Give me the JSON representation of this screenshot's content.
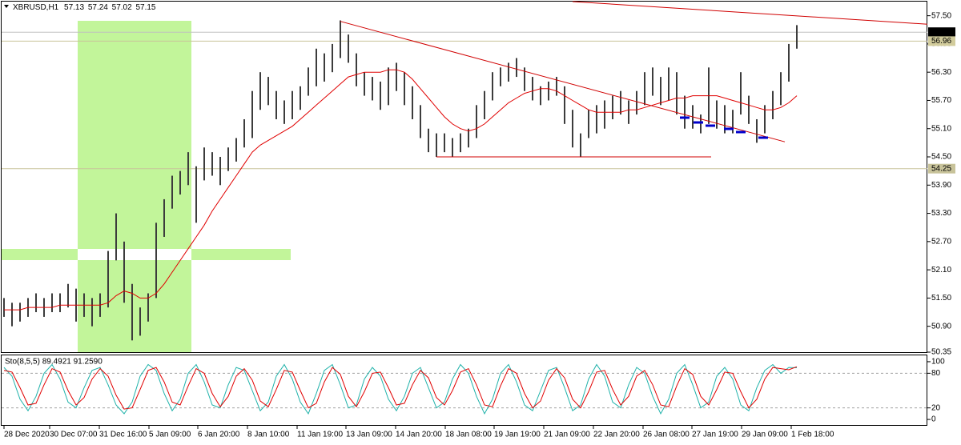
{
  "chart_data": [
    {
      "type": "price",
      "title": "XBRUSD,H1",
      "header_values": [
        57.13,
        57.24,
        57.02,
        57.15
      ],
      "bar_color": "#3c3c3c",
      "high": [
        51.5,
        51.4,
        51.4,
        51.5,
        51.6,
        51.5,
        51.6,
        51.6,
        51.8,
        51.7,
        51.6,
        51.5,
        51.6,
        52.5,
        53.3,
        52.7,
        51.8,
        51.3,
        51.6,
        53.1,
        53.6,
        54.1,
        54.2,
        54.6,
        54.3,
        54.7,
        54.6,
        54.5,
        54.7,
        54.9,
        55.3,
        55.9,
        56.3,
        56.2,
        55.9,
        55.7,
        55.9,
        56.0,
        56.4,
        56.8,
        56.7,
        56.9,
        57.4,
        57.1,
        56.7,
        56.3,
        56.2,
        56.1,
        56.4,
        56.5,
        56.3,
        56.0,
        55.6,
        55.1,
        55.0,
        55.0,
        54.9,
        55.0,
        55.1,
        55.6,
        55.9,
        56.3,
        56.4,
        56.5,
        56.6,
        56.4,
        56.2,
        56.0,
        56.1,
        56.2,
        56.0,
        55.5,
        55.0,
        55.5,
        55.6,
        55.7,
        55.8,
        55.9,
        55.7,
        55.9,
        56.3,
        56.4,
        56.2,
        56.4,
        56.3,
        55.8,
        55.6,
        55.4,
        56.4,
        55.7,
        55.6,
        55.5,
        56.3,
        55.8,
        55.3,
        55.6,
        55.9,
        56.3,
        56.9,
        57.3
      ],
      "low": [
        51.1,
        50.9,
        51.0,
        51.1,
        51.2,
        51.1,
        51.2,
        51.2,
        51.3,
        51.0,
        51.1,
        50.9,
        51.1,
        51.3,
        52.3,
        51.4,
        50.6,
        50.7,
        51.0,
        51.5,
        52.8,
        53.4,
        53.7,
        53.9,
        53.1,
        54.0,
        54.1,
        53.9,
        54.2,
        54.4,
        54.7,
        54.9,
        55.5,
        55.6,
        55.3,
        55.2,
        55.3,
        55.5,
        55.8,
        56.0,
        56.1,
        56.3,
        56.6,
        56.5,
        56.0,
        55.8,
        55.7,
        55.5,
        55.6,
        55.9,
        55.6,
        55.3,
        54.9,
        54.6,
        54.5,
        54.6,
        54.5,
        54.6,
        54.7,
        54.9,
        55.3,
        55.7,
        56.0,
        56.1,
        56.2,
        55.9,
        55.7,
        55.6,
        55.7,
        55.8,
        55.2,
        54.7,
        54.5,
        54.9,
        55.0,
        55.1,
        55.3,
        55.4,
        55.2,
        55.4,
        55.6,
        55.8,
        55.6,
        55.7,
        55.4,
        55.1,
        55.1,
        55.0,
        55.2,
        55.1,
        55.0,
        55.0,
        55.4,
        55.2,
        54.8,
        55.0,
        55.3,
        55.6,
        56.1,
        56.8
      ],
      "ma": {
        "color": "#e00000",
        "values": [
          51.25,
          51.25,
          51.25,
          51.3,
          51.3,
          51.3,
          51.3,
          51.35,
          51.35,
          51.35,
          51.35,
          51.35,
          51.35,
          51.4,
          51.55,
          51.65,
          51.6,
          51.5,
          51.5,
          51.6,
          51.8,
          52.05,
          52.3,
          52.55,
          52.8,
          53.05,
          53.35,
          53.6,
          53.85,
          54.1,
          54.35,
          54.6,
          54.75,
          54.85,
          54.95,
          55.05,
          55.15,
          55.3,
          55.45,
          55.6,
          55.75,
          55.9,
          56.05,
          56.2,
          56.25,
          56.3,
          56.3,
          56.3,
          56.35,
          56.35,
          56.3,
          56.15,
          55.95,
          55.75,
          55.55,
          55.35,
          55.2,
          55.1,
          55.05,
          55.1,
          55.2,
          55.35,
          55.5,
          55.65,
          55.75,
          55.85,
          55.9,
          55.95,
          55.95,
          55.9,
          55.8,
          55.7,
          55.6,
          55.5,
          55.45,
          55.45,
          55.45,
          55.45,
          55.5,
          55.5,
          55.55,
          55.6,
          55.65,
          55.7,
          55.75,
          55.75,
          55.8,
          55.8,
          55.8,
          55.8,
          55.75,
          55.7,
          55.65,
          55.6,
          55.55,
          55.5,
          55.5,
          55.55,
          55.65,
          55.8
        ]
      },
      "trendlines": [
        {
          "color": "#d00000",
          "x": [
            42,
            97.5
          ],
          "y": [
            57.38,
            54.82
          ]
        },
        {
          "color": "#d00000",
          "x": [
            71,
            115.3
          ],
          "y": [
            57.8,
            57.32
          ]
        },
        {
          "color": "#d00000",
          "x": [
            54,
            88.3
          ],
          "y": [
            54.5,
            54.5
          ]
        }
      ],
      "price_lines": [
        {
          "value": 57.15,
          "color": "#c0c0c0",
          "label_color": "#000000",
          "text_color": "#ffffff"
        },
        {
          "value": 56.96,
          "color": "#c8c39a",
          "label_color": "#d2cc9c",
          "text_color": "#ffffff"
        },
        {
          "value": 54.25,
          "color": "#c8c39a",
          "label_color": "#c8c39a",
          "text_color": "#ffffff"
        }
      ],
      "xlim": [
        -0.5,
        115.3
      ],
      "xticks": [
        {
          "value": 0,
          "label": "28 Dec 2020"
        },
        {
          "value": 5.7,
          "label": "30 Dec 07:00"
        },
        {
          "value": 11.9,
          "label": "31 Dec 16:00"
        },
        {
          "value": 18.1,
          "label": "5 Jan 09:00"
        },
        {
          "value": 24.2,
          "label": "6 Jan 20:00"
        },
        {
          "value": 30.4,
          "label": "8 Jan 10:00"
        },
        {
          "value": 36.6,
          "label": "11 Jan 19:00"
        },
        {
          "value": 42.7,
          "label": "13 Jan 09:00"
        },
        {
          "value": 48.9,
          "label": "14 Jan 20:00"
        },
        {
          "value": 55.1,
          "label": "18 Jan 08:00"
        },
        {
          "value": 61.2,
          "label": "19 Jan 19:00"
        },
        {
          "value": 67.4,
          "label": "21 Jan 09:00"
        },
        {
          "value": 73.6,
          "label": "22 Jan 20:00"
        },
        {
          "value": 79.8,
          "label": "26 Jan 08:00"
        },
        {
          "value": 85.9,
          "label": "27 Jan 19:00"
        },
        {
          "value": 92.1,
          "label": "29 Jan 09:00"
        },
        {
          "value": 98.3,
          "label": "1 Feb 18:00"
        }
      ],
      "ylim": [
        50.35,
        57.8
      ],
      "yticks": [
        {
          "value": 57.5,
          "label": "57.50"
        },
        {
          "value": 56.9,
          "label": "56.90"
        },
        {
          "value": 56.3,
          "label": "56.30"
        },
        {
          "value": 55.7,
          "label": "55.70"
        },
        {
          "value": 55.1,
          "label": "55.10"
        },
        {
          "value": 54.5,
          "label": "54.50"
        },
        {
          "value": 53.9,
          "label": "53.90"
        },
        {
          "value": 53.3,
          "label": "53.30"
        },
        {
          "value": 52.7,
          "label": "52.70"
        },
        {
          "value": 52.1,
          "label": "52.10"
        },
        {
          "value": 51.5,
          "label": "51.50"
        },
        {
          "value": 50.9,
          "label": "50.90"
        },
        50.35
      ]
    },
    {
      "type": "stochastic",
      "title": "Sto(8,5,5) 89.4921 91.2590",
      "series": [
        {
          "color": "#20b2aa",
          "values": [
            90,
            75,
            35,
            15,
            40,
            80,
            95,
            70,
            30,
            20,
            55,
            85,
            90,
            60,
            25,
            10,
            30,
            75,
            95,
            85,
            45,
            15,
            35,
            80,
            95,
            65,
            25,
            20,
            60,
            90,
            85,
            50,
            15,
            30,
            75,
            95,
            70,
            30,
            10,
            45,
            85,
            95,
            60,
            20,
            25,
            70,
            90,
            75,
            35,
            15,
            40,
            80,
            90,
            55,
            20,
            30,
            70,
            95,
            80,
            40,
            10,
            35,
            80,
            95,
            65,
            25,
            15,
            50,
            85,
            90,
            55,
            15,
            25,
            70,
            95,
            75,
            30,
            20,
            60,
            90,
            80,
            40,
            10,
            35,
            80,
            95,
            60,
            20,
            30,
            75,
            90,
            70,
            25,
            15,
            55,
            85,
            95,
            80,
            90,
            89.4921
          ]
        },
        {
          "color": "#e00000",
          "values": [
            85,
            82,
            55,
            25,
            28,
            60,
            88,
            82,
            50,
            25,
            38,
            70,
            88,
            75,
            42,
            18,
            20,
            52,
            85,
            90,
            65,
            30,
            25,
            58,
            88,
            80,
            45,
            22,
            40,
            75,
            88,
            68,
            32,
            22,
            52,
            85,
            82,
            50,
            20,
            28,
            65,
            90,
            78,
            40,
            22,
            48,
            80,
            82,
            55,
            25,
            28,
            60,
            85,
            72,
            38,
            25,
            50,
            82,
            88,
            60,
            25,
            22,
            58,
            88,
            80,
            45,
            20,
            32,
            68,
            88,
            72,
            35,
            20,
            48,
            82,
            85,
            52,
            25,
            40,
            75,
            85,
            60,
            25,
            22,
            58,
            88,
            78,
            40,
            25,
            52,
            82,
            80,
            48,
            20,
            35,
            70,
            90,
            88,
            86,
            91.259
          ]
        }
      ],
      "levels": [
        80,
        20
      ],
      "ylim": [
        -11,
        111
      ],
      "yticks": [
        100,
        80,
        20,
        0
      ]
    }
  ]
}
